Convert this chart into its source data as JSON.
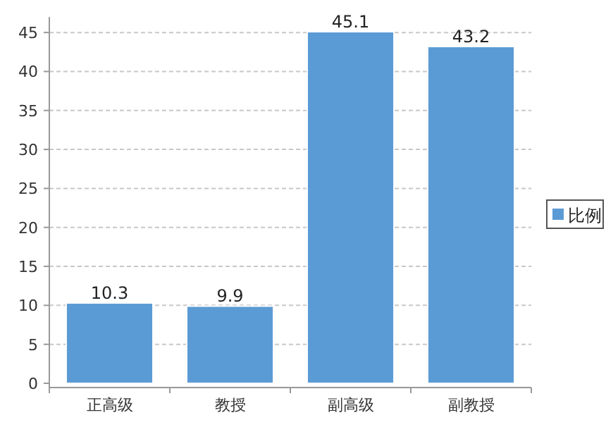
{
  "chart_data": {
    "type": "bar",
    "categories": [
      "正高级",
      "教授",
      "副高级",
      "副教授"
    ],
    "series": [
      {
        "name": "比例",
        "color": "#5b9bd5",
        "values": [
          10.3,
          9.9,
          45.1,
          43.2
        ]
      }
    ],
    "ylim": [
      0,
      47
    ],
    "yticks": [
      0,
      5,
      10,
      15,
      20,
      25,
      30,
      35,
      40,
      45
    ],
    "grid": "y",
    "legend": "right",
    "data_labels": true
  }
}
